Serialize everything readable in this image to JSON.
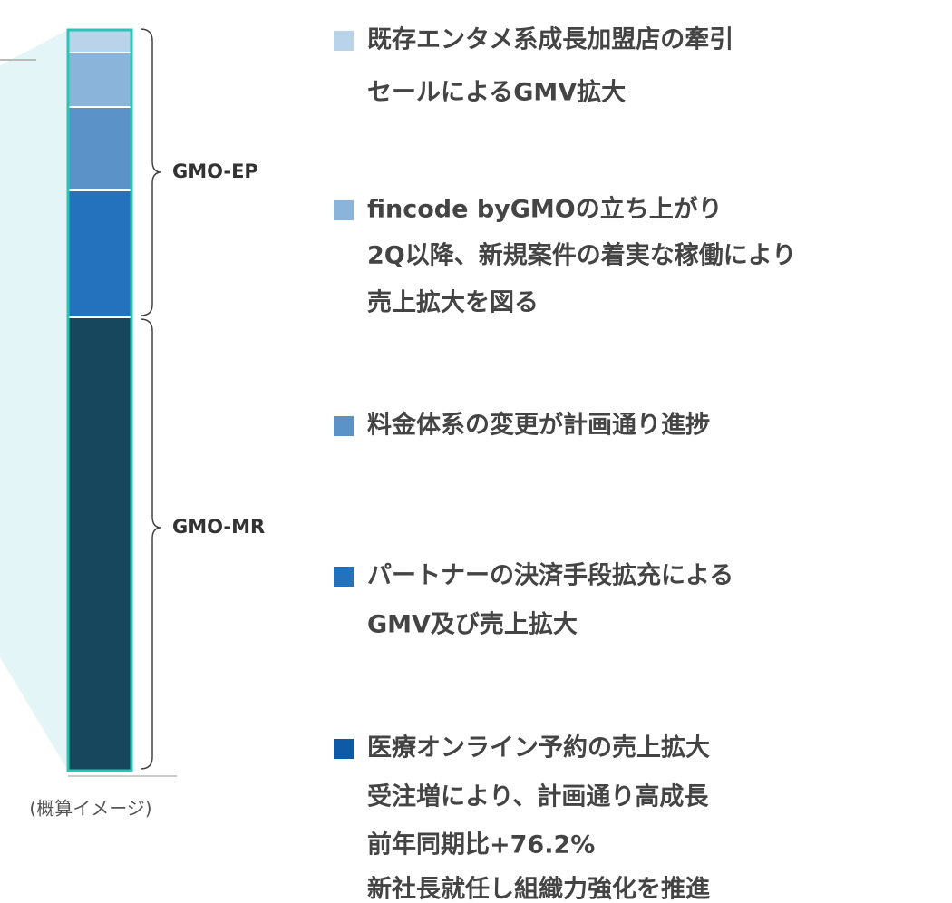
{
  "groups": [
    "GMO-EP",
    "GMO-MR"
  ],
  "note": "(概算イメージ)",
  "items": [
    {
      "lines": [
        "既存エンタメ系成長加盟店の牽引",
        "セールによるGMV拡大"
      ]
    },
    {
      "lines": [
        "fincode byGMOの立ち上がり",
        "2Q以降、新規案件の着実な稼働により",
        "売上拡大を図る"
      ]
    },
    {
      "lines": [
        "料金体系の変更が計画通り進捗"
      ]
    },
    {
      "lines": [
        "パートナーの決済手段拡充による",
        "GMV及び売上拡大"
      ]
    },
    {
      "lines": [
        "医療オンライン予約の売上拡大",
        "受注増により、計画通り高成長",
        "前年同期比+76.2%",
        "新社長就任し組織力強化を推進"
      ]
    }
  ]
}
